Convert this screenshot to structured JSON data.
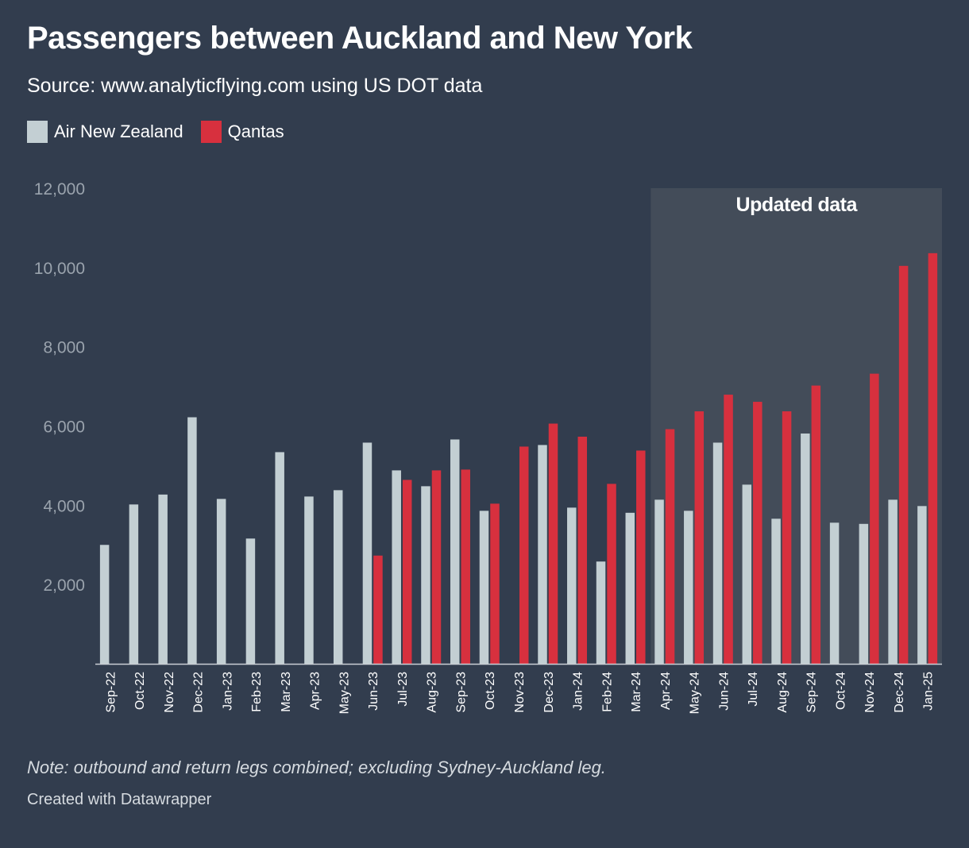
{
  "colors": {
    "background": "#323d4e",
    "air_new_zealand": "#c3cfd3",
    "qantas": "#d7303e",
    "highlight_band": "#434c59",
    "axis_text": "#9aa3ad"
  },
  "chart_data": {
    "type": "bar",
    "title": "Passengers between Auckland and New York",
    "subtitle": "Source: www.analyticflying.com using US DOT data",
    "categories": [
      "Sep-22",
      "Oct-22",
      "Nov-22",
      "Dec-22",
      "Jan-23",
      "Feb-23",
      "Mar-23",
      "Apr-23",
      "May-23",
      "Jun-23",
      "Jul-23",
      "Aug-23",
      "Sep-23",
      "Oct-23",
      "Nov-23",
      "Dec-23",
      "Jan-24",
      "Feb-24",
      "Mar-24",
      "Apr-24",
      "May-24",
      "Jun-24",
      "Jul-24",
      "Aug-24",
      "Sep-24",
      "Oct-24",
      "Nov-24",
      "Dec-24",
      "Jan-25"
    ],
    "series": [
      {
        "name": "Air New Zealand",
        "color": "#c3cfd3",
        "values": [
          3000,
          4020,
          4270,
          6220,
          4160,
          3160,
          5340,
          4220,
          4380,
          5580,
          4880,
          4480,
          5660,
          3860,
          null,
          5520,
          3940,
          2580,
          3810,
          4140,
          3860,
          5580,
          4520,
          3660,
          5810,
          3560,
          3530,
          4140,
          3980
        ]
      },
      {
        "name": "Qantas",
        "color": "#d7303e",
        "values": [
          null,
          null,
          null,
          null,
          null,
          null,
          null,
          null,
          null,
          2730,
          4640,
          4880,
          4900,
          4040,
          5480,
          6060,
          5730,
          4540,
          5380,
          5920,
          6370,
          6790,
          6610,
          6370,
          7020,
          null,
          7320,
          10040,
          10360
        ]
      }
    ],
    "ylim": [
      0,
      12000
    ],
    "yticks": [
      2000,
      4000,
      6000,
      8000,
      10000,
      12000
    ],
    "ytick_labels": [
      "2,000",
      "4,000",
      "6,000",
      "8,000",
      "10,000",
      "12,000"
    ],
    "grid": false,
    "legend_position": "top-left",
    "annotation": {
      "label": "Updated data",
      "from": "Apr-24",
      "to": "Jan-25"
    },
    "xlabel": "",
    "ylabel": ""
  },
  "note": "Note: outbound and return legs combined; excluding Sydney-Auckland leg.",
  "credit": "Created with Datawrapper"
}
